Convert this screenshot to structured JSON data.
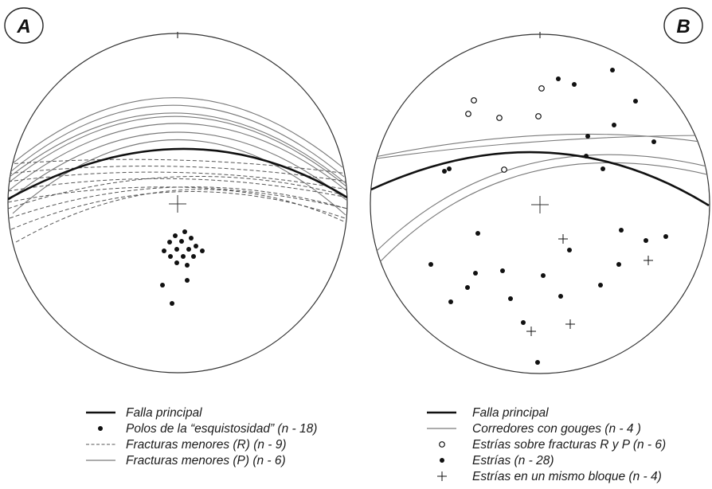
{
  "panels": [
    {
      "id": "A",
      "letter": "A",
      "legend": [
        {
          "symbol": "thick-line",
          "text": "Falla principal"
        },
        {
          "symbol": "filled-dot",
          "text": "Polos de la “esquistosidad” (n - 18)"
        },
        {
          "symbol": "dashed-line",
          "text": "Fracturas menores (R) (n - 9)"
        },
        {
          "symbol": "thin-line",
          "text": "Fracturas menores (P) (n - 6)"
        }
      ]
    },
    {
      "id": "B",
      "letter": "B",
      "legend": [
        {
          "symbol": "thick-line",
          "text": "Falla principal"
        },
        {
          "symbol": "thin-line",
          "text": "Corredores con gouges (n - 4 )"
        },
        {
          "symbol": "open-circle",
          "text": "Estrías sobre fracturas R y P (n - 6)"
        },
        {
          "symbol": "filled-dot",
          "text": "Estrías (n - 28)"
        },
        {
          "symbol": "plus",
          "text": "Estrías en un mismo bloque (n - 4)"
        }
      ]
    }
  ],
  "colors": {
    "ink": "#1a1a1a",
    "thin": "#7a7a7a",
    "dashed": "#555555"
  }
}
